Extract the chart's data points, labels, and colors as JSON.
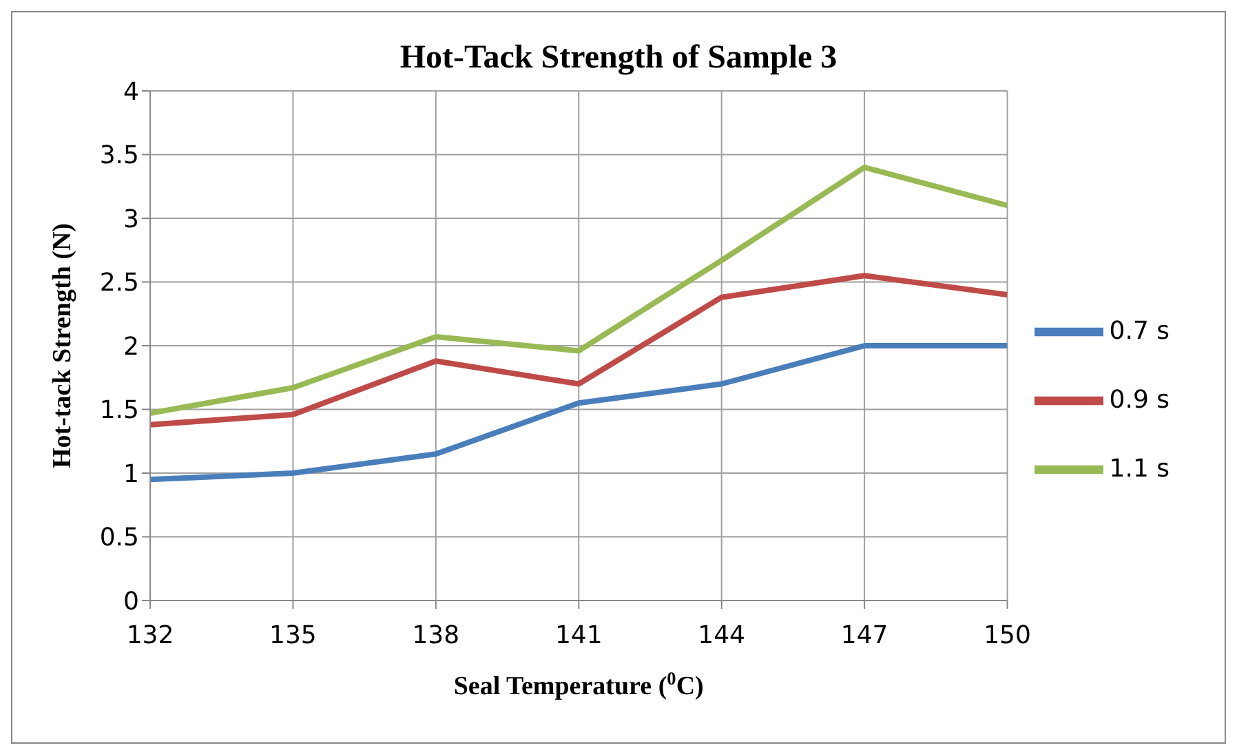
{
  "chart_data": {
    "type": "line",
    "title": "Hot-Tack Strength of Sample 3",
    "xlabel": "Seal Temperature ($^{0}$C)",
    "ylabel": "Hot-tack Strength (N)",
    "x": [
      132,
      135,
      138,
      141,
      144,
      147,
      150
    ],
    "series": [
      {
        "name": "0.7 s",
        "color": "#4a7ebb",
        "values": [
          0.95,
          1.0,
          1.15,
          1.55,
          1.7,
          2.0,
          2.0
        ]
      },
      {
        "name": "0.9 s",
        "color": "#be4b48",
        "values": [
          1.38,
          1.46,
          1.88,
          1.7,
          2.38,
          2.55,
          2.4
        ]
      },
      {
        "name": "1.1 s",
        "color": "#98b954",
        "values": [
          1.47,
          1.67,
          2.07,
          1.96,
          2.67,
          3.4,
          3.1
        ]
      }
    ],
    "xlim": [
      132,
      150
    ],
    "xticks": [
      132,
      135,
      138,
      141,
      144,
      147,
      150
    ],
    "ylim": [
      0,
      4
    ],
    "yticks": [
      0,
      0.5,
      1,
      1.5,
      2,
      2.5,
      3,
      3.5,
      4
    ],
    "grid": true,
    "legend": "right",
    "marker": "none",
    "line_style": "solid"
  }
}
